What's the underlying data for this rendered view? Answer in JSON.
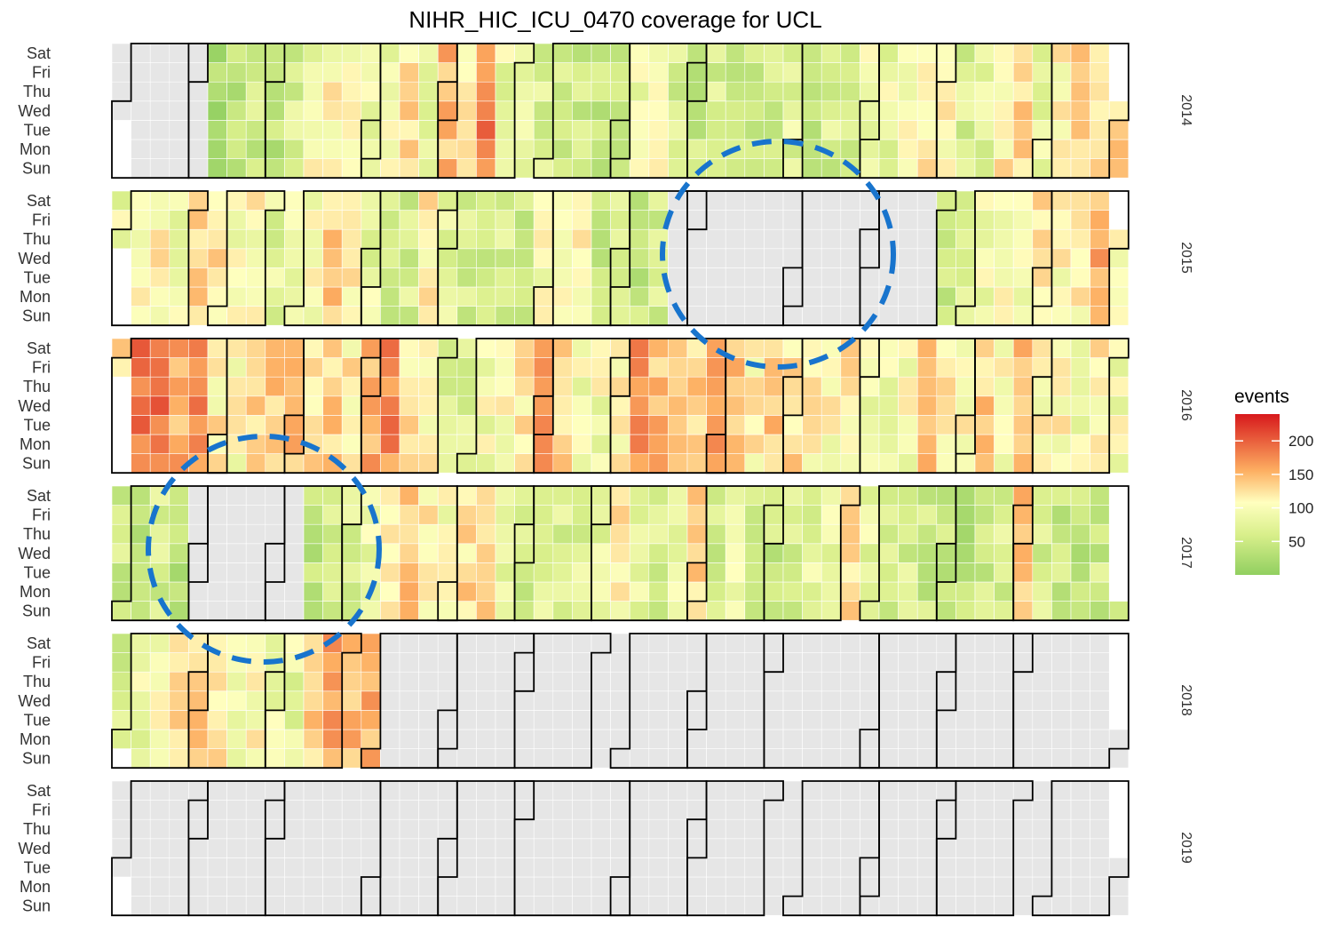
{
  "chart_data": {
    "type": "heatmap",
    "title": "NIHR_HIC_ICU_0470 coverage for UCL",
    "weekdays": [
      "Sat",
      "Fri",
      "Thu",
      "Wed",
      "Tue",
      "Mon",
      "Sun"
    ],
    "years": [
      {
        "year": "2014",
        "first_weekday": 3,
        "days": 365
      },
      {
        "year": "2015",
        "first_weekday": 4,
        "days": 365
      },
      {
        "year": "2016",
        "first_weekday": 5,
        "days": 366
      },
      {
        "year": "2017",
        "first_weekday": 0,
        "days": 365
      },
      {
        "year": "2018",
        "first_weekday": 1,
        "days": 365
      },
      {
        "year": "2019",
        "first_weekday": 2,
        "days": 365
      }
    ],
    "legend": {
      "title": "events",
      "ticks": [
        50,
        100,
        150,
        200
      ],
      "range": [
        0,
        240
      ],
      "position": "right"
    },
    "colors": {
      "low": "#91cf60",
      "mid_low": "#d9ef8b",
      "mid": "#ffffbf",
      "mid_high": "#fdae61",
      "high": "#d7191c",
      "missing": "#e6e6e6",
      "annotation": "#1874cd"
    },
    "weekly_events": {
      "2014": [
        null,
        null,
        null,
        null,
        null,
        20,
        40,
        50,
        40,
        60,
        90,
        100,
        100,
        80,
        90,
        120,
        60,
        140,
        110,
        180,
        80,
        90,
        60,
        60,
        50,
        45,
        50,
        90,
        90,
        60,
        50,
        60,
        40,
        50,
        50,
        70,
        50,
        60,
        60,
        90,
        80,
        90,
        110,
        100,
        60,
        70,
        110,
        120,
        80,
        100,
        130,
        120,
        130
      ],
      "2015": [
        80,
        100,
        110,
        90,
        130,
        120,
        90,
        100,
        70,
        80,
        90,
        130,
        110,
        80,
        50,
        60,
        110,
        80,
        60,
        50,
        60,
        50,
        90,
        110,
        100,
        50,
        60,
        40,
        60,
        null,
        null,
        null,
        null,
        null,
        null,
        null,
        null,
        null,
        null,
        null,
        null,
        null,
        null,
        50,
        60,
        90,
        90,
        80,
        110,
        100,
        110,
        150,
        90
      ],
      "2016": [
        130,
        180,
        190,
        150,
        170,
        110,
        100,
        120,
        130,
        140,
        120,
        130,
        110,
        150,
        170,
        120,
        100,
        60,
        70,
        90,
        100,
        110,
        150,
        120,
        90,
        90,
        110,
        170,
        140,
        120,
        130,
        150,
        140,
        110,
        130,
        120,
        110,
        100,
        110,
        90,
        80,
        90,
        130,
        110,
        100,
        130,
        100,
        140,
        100,
        100,
        90,
        110,
        90,
        60
      ],
      "2017": [
        50,
        40,
        60,
        40,
        null,
        null,
        null,
        null,
        null,
        null,
        40,
        60,
        70,
        80,
        120,
        130,
        110,
        90,
        120,
        130,
        80,
        60,
        70,
        60,
        70,
        80,
        110,
        70,
        60,
        80,
        130,
        60,
        90,
        60,
        50,
        60,
        70,
        80,
        120,
        80,
        60,
        60,
        50,
        50,
        40,
        50,
        60,
        140,
        60,
        50,
        40,
        50,
        60
      ],
      "2018": [
        60,
        80,
        90,
        120,
        130,
        120,
        90,
        100,
        90,
        80,
        130,
        160,
        140,
        150,
        null,
        null,
        null,
        null,
        null,
        null,
        null,
        null,
        null,
        null,
        null,
        null,
        null,
        null,
        null,
        null,
        null,
        null,
        null,
        null,
        null,
        null,
        null,
        null,
        null,
        null,
        null,
        null,
        null,
        null,
        null,
        null,
        null,
        null,
        null,
        null,
        null,
        null,
        null
      ],
      "2019": []
    }
  }
}
